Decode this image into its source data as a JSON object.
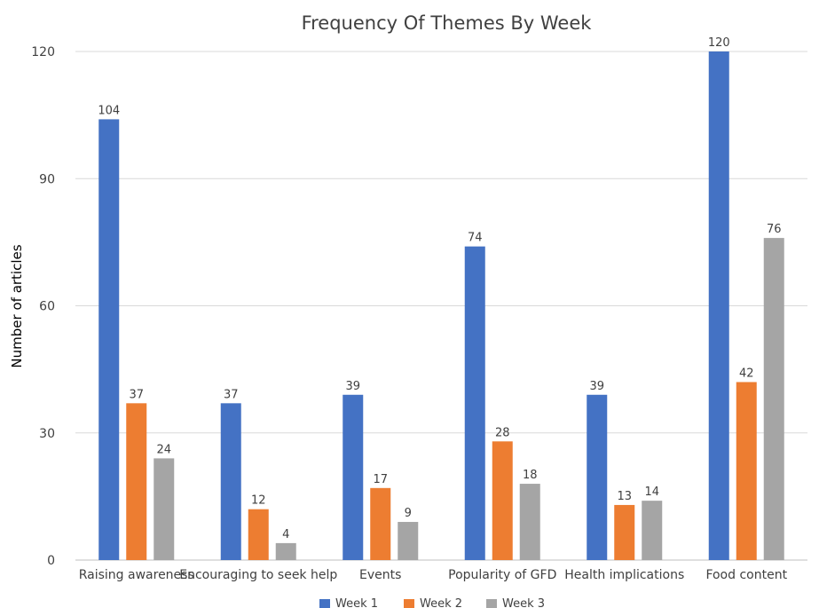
{
  "chart_data": {
    "type": "bar",
    "title": "Frequency Of Themes By Week",
    "xlabel": "",
    "ylabel": "Number of articles",
    "ylim": [
      0,
      120
    ],
    "yticks": [
      0,
      30,
      60,
      90,
      120
    ],
    "grid": true,
    "legend_position": "bottom",
    "categories": [
      "Raising awareness",
      "Encouraging to seek help",
      "Events",
      "Popularity of GFD",
      "Health implications",
      "Food content"
    ],
    "series": [
      {
        "name": "Week 1",
        "color": "#4472C4",
        "values": [
          104,
          37,
          39,
          74,
          39,
          120
        ]
      },
      {
        "name": "Week 2",
        "color": "#ED7D31",
        "values": [
          37,
          12,
          17,
          28,
          13,
          42
        ]
      },
      {
        "name": "Week 3",
        "color": "#A5A5A5",
        "values": [
          24,
          4,
          9,
          18,
          14,
          76
        ]
      }
    ]
  }
}
